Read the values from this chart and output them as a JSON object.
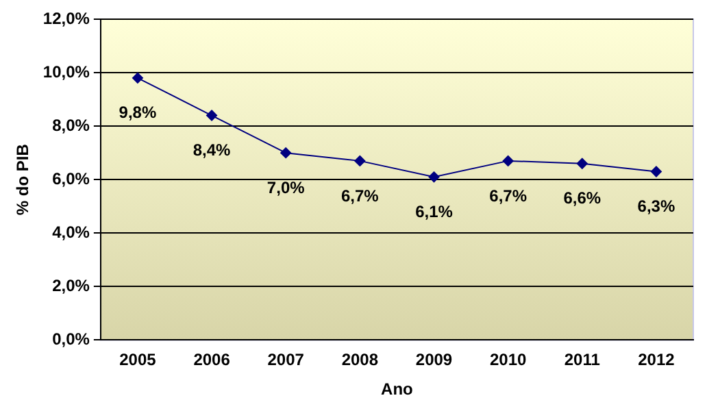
{
  "chart_data": {
    "type": "line",
    "xlabel": "Ano",
    "ylabel": "% do PIB",
    "categories": [
      "2005",
      "2006",
      "2007",
      "2008",
      "2009",
      "2010",
      "2011",
      "2012"
    ],
    "series": [
      {
        "color": "#000080",
        "values": [
          9.8,
          8.4,
          7.0,
          6.7,
          6.1,
          6.7,
          6.6,
          6.3
        ],
        "value_labels": [
          "9,8%",
          "8,4%",
          "7,0%",
          "6,7%",
          "6,1%",
          "6,7%",
          "6,6%",
          "6,3%"
        ]
      }
    ],
    "ylim": [
      0,
      12
    ],
    "yticks": [
      {
        "value": 0,
        "label": "0,0%"
      },
      {
        "value": 2,
        "label": "2,0%"
      },
      {
        "value": 4,
        "label": "4,0%"
      },
      {
        "value": 6,
        "label": "6,0%"
      },
      {
        "value": 8,
        "label": "8,0%"
      },
      {
        "value": 10,
        "label": "10,0%"
      },
      {
        "value": 12,
        "label": "12,0%"
      }
    ],
    "grid": "y",
    "legend": false,
    "marker": "diamond",
    "line_style": "solid"
  }
}
